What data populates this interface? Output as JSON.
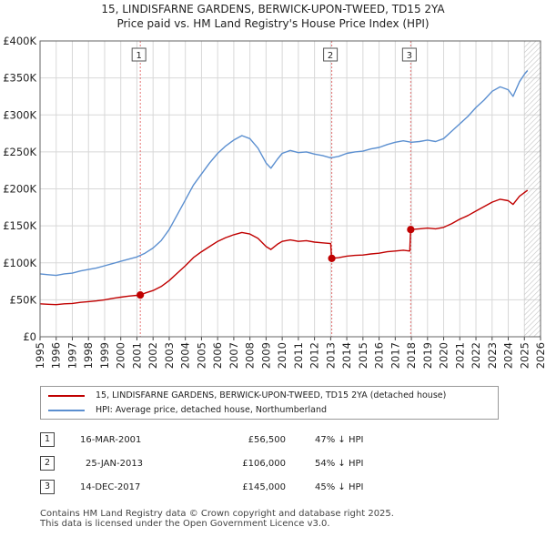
{
  "title": {
    "line1": "15, LINDISFARNE GARDENS, BERWICK-UPON-TWEED, TD15 2YA",
    "line2": "Price paid vs. HM Land Registry's House Price Index (HPI)"
  },
  "chart_data": {
    "type": "line",
    "title": "15, LINDISFARNE GARDENS, BERWICK-UPON-TWEED, TD15 2YA — Price paid vs. HM Land Registry's House Price Index (HPI)",
    "xlabel": "",
    "ylabel": "",
    "xlim": [
      1995,
      2026
    ],
    "ylim": [
      0,
      400000
    ],
    "grid": true,
    "y_ticks": [
      {
        "value": 0,
        "label": "£0"
      },
      {
        "value": 50000,
        "label": "£50K"
      },
      {
        "value": 100000,
        "label": "£100K"
      },
      {
        "value": 150000,
        "label": "£150K"
      },
      {
        "value": 200000,
        "label": "£200K"
      },
      {
        "value": 250000,
        "label": "£250K"
      },
      {
        "value": 300000,
        "label": "£300K"
      },
      {
        "value": 350000,
        "label": "£350K"
      },
      {
        "value": 400000,
        "label": "£400K"
      }
    ],
    "x_ticks": [
      "1995",
      "1996",
      "1997",
      "1998",
      "1999",
      "2000",
      "2001",
      "2002",
      "2003",
      "2004",
      "2005",
      "2006",
      "2007",
      "2008",
      "2009",
      "2010",
      "2011",
      "2012",
      "2013",
      "2014",
      "2015",
      "2016",
      "2017",
      "2018",
      "2019",
      "2020",
      "2021",
      "2022",
      "2023",
      "2024",
      "2025",
      "2026"
    ],
    "series": [
      {
        "name": "HPI: Average price, detached house, Northumberland",
        "color": "#5b8fd0",
        "points": [
          [
            1995.0,
            85000
          ],
          [
            1995.5,
            84000
          ],
          [
            1996.0,
            83000
          ],
          [
            1996.5,
            85000
          ],
          [
            1997.0,
            86000
          ],
          [
            1997.5,
            89000
          ],
          [
            1998.0,
            91000
          ],
          [
            1998.5,
            93000
          ],
          [
            1999.0,
            96000
          ],
          [
            1999.5,
            99000
          ],
          [
            2000.0,
            102000
          ],
          [
            2000.5,
            105000
          ],
          [
            2001.0,
            108000
          ],
          [
            2001.5,
            113000
          ],
          [
            2002.0,
            120000
          ],
          [
            2002.5,
            130000
          ],
          [
            2003.0,
            145000
          ],
          [
            2003.5,
            165000
          ],
          [
            2004.0,
            185000
          ],
          [
            2004.5,
            205000
          ],
          [
            2005.0,
            220000
          ],
          [
            2005.5,
            235000
          ],
          [
            2006.0,
            248000
          ],
          [
            2006.5,
            258000
          ],
          [
            2007.0,
            266000
          ],
          [
            2007.5,
            272000
          ],
          [
            2008.0,
            268000
          ],
          [
            2008.5,
            255000
          ],
          [
            2009.0,
            235000
          ],
          [
            2009.3,
            228000
          ],
          [
            2009.7,
            240000
          ],
          [
            2010.0,
            248000
          ],
          [
            2010.5,
            252000
          ],
          [
            2011.0,
            249000
          ],
          [
            2011.5,
            250000
          ],
          [
            2012.0,
            247000
          ],
          [
            2012.5,
            245000
          ],
          [
            2013.0,
            242000
          ],
          [
            2013.5,
            244000
          ],
          [
            2014.0,
            248000
          ],
          [
            2014.5,
            250000
          ],
          [
            2015.0,
            251000
          ],
          [
            2015.5,
            254000
          ],
          [
            2016.0,
            256000
          ],
          [
            2016.5,
            260000
          ],
          [
            2017.0,
            263000
          ],
          [
            2017.5,
            265000
          ],
          [
            2018.0,
            263000
          ],
          [
            2018.5,
            264000
          ],
          [
            2019.0,
            266000
          ],
          [
            2019.5,
            264000
          ],
          [
            2020.0,
            268000
          ],
          [
            2020.5,
            278000
          ],
          [
            2021.0,
            288000
          ],
          [
            2021.5,
            298000
          ],
          [
            2022.0,
            310000
          ],
          [
            2022.5,
            320000
          ],
          [
            2023.0,
            332000
          ],
          [
            2023.5,
            338000
          ],
          [
            2024.0,
            334000
          ],
          [
            2024.3,
            325000
          ],
          [
            2024.7,
            345000
          ],
          [
            2025.0,
            355000
          ],
          [
            2025.2,
            360000
          ]
        ]
      },
      {
        "name": "15, LINDISFARNE GARDENS, BERWICK-UPON-TWEED, TD15 2YA (detached house)",
        "color": "#c00000",
        "points": [
          [
            1995.0,
            44500
          ],
          [
            1995.5,
            44000
          ],
          [
            1996.0,
            43500
          ],
          [
            1996.5,
            44500
          ],
          [
            1997.0,
            45000
          ],
          [
            1997.5,
            46500
          ],
          [
            1998.0,
            47500
          ],
          [
            1998.5,
            48500
          ],
          [
            1999.0,
            50000
          ],
          [
            1999.5,
            52000
          ],
          [
            2000.0,
            53500
          ],
          [
            2000.5,
            55000
          ],
          [
            2001.0,
            56000
          ],
          [
            2001.21,
            56500
          ],
          [
            2001.5,
            59000
          ],
          [
            2002.0,
            62500
          ],
          [
            2002.5,
            68000
          ],
          [
            2003.0,
            76000
          ],
          [
            2003.5,
            86000
          ],
          [
            2004.0,
            96000
          ],
          [
            2004.5,
            107000
          ],
          [
            2005.0,
            115000
          ],
          [
            2005.5,
            122000
          ],
          [
            2006.0,
            129000
          ],
          [
            2006.5,
            134000
          ],
          [
            2007.0,
            138000
          ],
          [
            2007.5,
            141000
          ],
          [
            2008.0,
            139000
          ],
          [
            2008.5,
            133000
          ],
          [
            2009.0,
            122000
          ],
          [
            2009.3,
            118000
          ],
          [
            2009.7,
            125000
          ],
          [
            2010.0,
            129000
          ],
          [
            2010.5,
            131000
          ],
          [
            2011.0,
            129000
          ],
          [
            2011.5,
            130000
          ],
          [
            2012.0,
            128000
          ],
          [
            2012.5,
            127000
          ],
          [
            2013.0,
            126000
          ],
          [
            2013.06,
            106000
          ],
          [
            2013.5,
            107000
          ],
          [
            2014.0,
            109000
          ],
          [
            2014.5,
            110000
          ],
          [
            2015.0,
            110500
          ],
          [
            2015.5,
            112000
          ],
          [
            2016.0,
            113000
          ],
          [
            2016.5,
            115000
          ],
          [
            2017.0,
            116000
          ],
          [
            2017.5,
            117000
          ],
          [
            2017.9,
            116000
          ],
          [
            2017.95,
            145000
          ],
          [
            2018.5,
            146000
          ],
          [
            2019.0,
            147000
          ],
          [
            2019.5,
            146000
          ],
          [
            2020.0,
            148000
          ],
          [
            2020.5,
            153000
          ],
          [
            2021.0,
            159000
          ],
          [
            2021.5,
            164000
          ],
          [
            2022.0,
            170000
          ],
          [
            2022.5,
            176000
          ],
          [
            2023.0,
            182000
          ],
          [
            2023.5,
            186000
          ],
          [
            2024.0,
            184000
          ],
          [
            2024.3,
            179000
          ],
          [
            2024.7,
            190000
          ],
          [
            2025.0,
            195000
          ],
          [
            2025.2,
            198000
          ]
        ]
      }
    ],
    "sales": [
      {
        "id": "1",
        "year": 2001.21,
        "price": 56500
      },
      {
        "id": "2",
        "year": 2013.07,
        "price": 106000
      },
      {
        "id": "3",
        "year": 2017.96,
        "price": 145000
      }
    ],
    "future_shade_from": 2025.0
  },
  "legend": {
    "items": [
      {
        "label": "15, LINDISFARNE GARDENS, BERWICK-UPON-TWEED, TD15 2YA (detached house)",
        "color": "#c00000"
      },
      {
        "label": "HPI: Average price, detached house, Northumberland",
        "color": "#5b8fd0"
      }
    ]
  },
  "table": {
    "rows": [
      {
        "num": "1",
        "date": "16-MAR-2001",
        "price": "£56,500",
        "hpi": "47% ↓ HPI"
      },
      {
        "num": "2",
        "date": "25-JAN-2013",
        "price": "£106,000",
        "hpi": "54% ↓ HPI"
      },
      {
        "num": "3",
        "date": "14-DEC-2017",
        "price": "£145,000",
        "hpi": "45% ↓ HPI"
      }
    ]
  },
  "footer": {
    "line1": "Contains HM Land Registry data © Crown copyright and database right 2025.",
    "line2": "This data is licensed under the Open Government Licence v3.0."
  }
}
